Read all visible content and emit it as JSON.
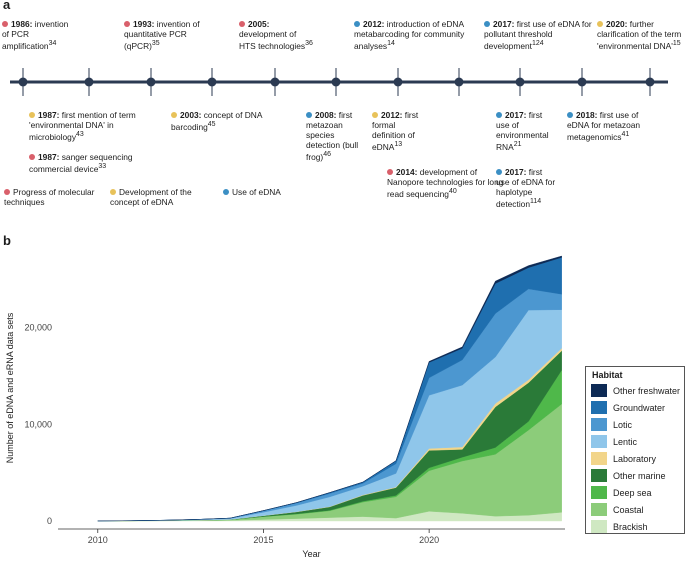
{
  "panel_a": {
    "label": "a",
    "events_top": [
      {
        "color": "#d9606b",
        "year": "1986:",
        "text": " invention of PCR amplification",
        "ref": "34"
      },
      {
        "color": "#d9606b",
        "year": "1993:",
        "text": " invention of quantitative PCR (qPCR)",
        "ref": "35"
      },
      {
        "color": "#d9606b",
        "year": "2005:",
        "text": " development of HTS technologies",
        "ref": "36"
      },
      {
        "color": "#3b8fc4",
        "year": "2012:",
        "text": " introduction of eDNA metabarcoding for community analyses",
        "ref": "14"
      },
      {
        "color": "#3b8fc4",
        "year": "2017:",
        "text": " first use of eDNA for pollutant threshold development",
        "ref": "124"
      },
      {
        "color": "#e8c25a",
        "year": "2020:",
        "text": " further clarification of the term 'environmental DNA'",
        "ref": "15"
      }
    ],
    "events_bottom": [
      {
        "color": "#e8c25a",
        "year": "1987:",
        "text": " first mention of term 'environmental DNA' in microbiology",
        "ref": "43"
      },
      {
        "color": "#d9606b",
        "year": "1987:",
        "text": " sanger sequencing commercial device",
        "ref": "33"
      },
      {
        "color": "#e8c25a",
        "year": "2003:",
        "text": " concept of DNA barcoding",
        "ref": "45"
      },
      {
        "color": "#3b8fc4",
        "year": "2008:",
        "text": " first metazoan species detection (bull frog)",
        "ref": "46"
      },
      {
        "color": "#e8c25a",
        "year": "2012:",
        "text": " first formal definition of eDNA",
        "ref": "13"
      },
      {
        "color": "#d9606b",
        "year": "2014:",
        "text": " development of Nanopore technologies for long read sequencing",
        "ref": "40"
      },
      {
        "color": "#3b8fc4",
        "year": "2017:",
        "text": " first use of environmental RNA",
        "ref": "21"
      },
      {
        "color": "#3b8fc4",
        "year": "2017:",
        "text": " first use of eDNA for haplotype detection",
        "ref": "114"
      },
      {
        "color": "#3b8fc4",
        "year": "2018:",
        "text": " first use of eDNA for metazoan metagenomics",
        "ref": "41"
      }
    ],
    "legend": [
      {
        "color": "#d9606b",
        "label": "Progress of molecular techniques"
      },
      {
        "color": "#e8c25a",
        "label": "Development of the concept of eDNA"
      },
      {
        "color": "#3b8fc4",
        "label": "Use of eDNA"
      }
    ],
    "timeline_color": "#2b3a52"
  },
  "chart_data": {
    "type": "area",
    "panel_label": "b",
    "title": "",
    "xlabel": "Year",
    "ylabel": "Number of eDNA and eRNA data sets",
    "xlim": [
      2008.8,
      2024.1
    ],
    "ylim": [
      0,
      27500
    ],
    "xticks": [
      2010,
      2015,
      2020
    ],
    "yticks": [
      0,
      10000,
      20000
    ],
    "ytick_labels": [
      "0",
      "10,000",
      "20,000"
    ],
    "legend_title": "Habitat",
    "x": [
      2010,
      2011,
      2012,
      2013,
      2014,
      2015,
      2016,
      2017,
      2018,
      2019,
      2020,
      2021,
      2022,
      2023,
      2024
    ],
    "series": [
      {
        "name": "Brackish",
        "color": "#cfe8c2",
        "values": [
          5,
          10,
          20,
          40,
          60,
          150,
          250,
          350,
          450,
          300,
          1000,
          800,
          500,
          600,
          900
        ]
      },
      {
        "name": "Coastal",
        "color": "#8ccc7a",
        "values": [
          5,
          10,
          20,
          40,
          70,
          300,
          450,
          700,
          1500,
          2200,
          4200,
          5400,
          6400,
          8800,
          11200
        ]
      },
      {
        "name": "Deep sea",
        "color": "#4fb84a",
        "values": [
          0,
          0,
          0,
          0,
          5,
          20,
          40,
          60,
          100,
          150,
          300,
          400,
          700,
          900,
          3500
        ]
      },
      {
        "name": "Other marine",
        "color": "#2a7a38",
        "values": [
          0,
          0,
          5,
          10,
          20,
          80,
          200,
          350,
          600,
          800,
          1800,
          800,
          4200,
          4000,
          2000
        ]
      },
      {
        "name": "Laboratory",
        "color": "#f2d58a",
        "values": [
          0,
          0,
          0,
          0,
          0,
          10,
          20,
          30,
          50,
          70,
          200,
          250,
          350,
          300,
          250
        ]
      },
      {
        "name": "Lentic",
        "color": "#8fc6ea",
        "values": [
          5,
          10,
          30,
          60,
          100,
          350,
          650,
          1000,
          900,
          1400,
          5500,
          6400,
          4800,
          7200,
          4000
        ]
      },
      {
        "name": "Lotic",
        "color": "#4c97d0",
        "values": [
          0,
          5,
          10,
          20,
          40,
          150,
          250,
          350,
          300,
          1000,
          1800,
          2600,
          4500,
          2200,
          1600
        ]
      },
      {
        "name": "Groundwater",
        "color": "#1f6faf",
        "values": [
          0,
          0,
          0,
          0,
          5,
          20,
          40,
          100,
          120,
          300,
          1600,
          1200,
          3100,
          2200,
          3800
        ]
      },
      {
        "name": "Other freshwater",
        "color": "#0d2a55",
        "values": [
          0,
          0,
          0,
          0,
          0,
          5,
          10,
          10,
          10,
          20,
          100,
          150,
          250,
          200,
          150
        ]
      }
    ]
  }
}
